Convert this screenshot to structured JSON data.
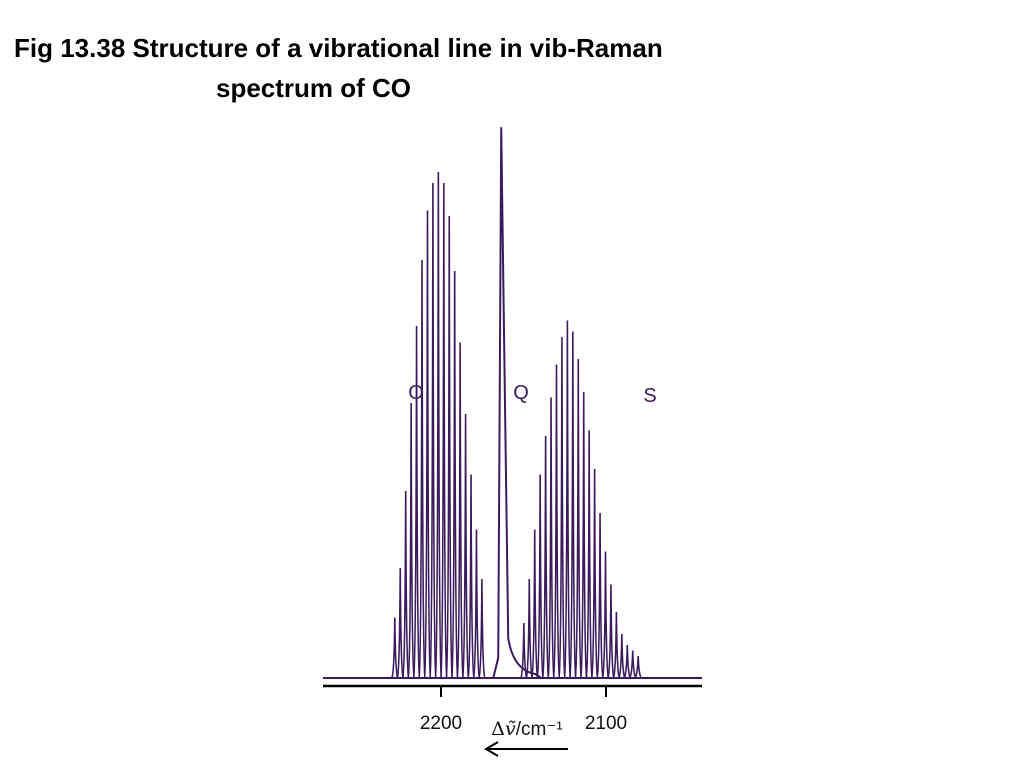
{
  "slide": {
    "title_line1": "Fig 13.38  Structure of a vibrational line in vib-Raman",
    "title_line2": "spectrum of CO"
  },
  "colors": {
    "spectrum": "#3b1a5e",
    "axis": "#000000"
  },
  "chart_data": {
    "type": "line",
    "xlabel_prefix": "Δ",
    "xlabel_var": "ṽ",
    "xlabel_unit": "/cm⁻¹",
    "x_direction": "decreasing to the right",
    "xlim": [
      2235,
      2073
    ],
    "xticks": [
      2200,
      2100
    ],
    "tick_labels": [
      "2200",
      "2100"
    ],
    "ylim": [
      0,
      1.0
    ],
    "branches": [
      {
        "name": "O",
        "positions": [
          2228,
          2224.7,
          2221.4,
          2218.1,
          2214.8,
          2211.5,
          2208.2,
          2204.9,
          2201.6,
          2198.3,
          2195,
          2191.7,
          2188.4,
          2185.1,
          2181.8,
          2178.5,
          2175.2
        ],
        "intensities": [
          0.11,
          0.2,
          0.34,
          0.5,
          0.64,
          0.76,
          0.85,
          0.9,
          0.92,
          0.9,
          0.84,
          0.74,
          0.61,
          0.48,
          0.37,
          0.27,
          0.18
        ]
      },
      {
        "name": "Q",
        "positions": [
          2163.5
        ],
        "intensities": [
          1.0
        ]
      },
      {
        "name": "S",
        "positions": [
          2149.8,
          2146.5,
          2143.2,
          2139.9,
          2136.6,
          2133.3,
          2130,
          2126.7,
          2123.4,
          2120.1,
          2116.8,
          2113.5,
          2110.2,
          2106.9,
          2103.6,
          2100.3,
          2097,
          2093.7,
          2090.4,
          2087.1,
          2083.8,
          2080.5
        ],
        "intensities": [
          0.1,
          0.18,
          0.27,
          0.37,
          0.44,
          0.51,
          0.57,
          0.62,
          0.65,
          0.63,
          0.58,
          0.52,
          0.45,
          0.38,
          0.3,
          0.23,
          0.17,
          0.12,
          0.08,
          0.06,
          0.05,
          0.04
        ]
      }
    ],
    "annotations": [
      {
        "text": "O",
        "branch": "O"
      },
      {
        "text": "Q",
        "branch": "Q"
      },
      {
        "text": "S",
        "branch": "S"
      }
    ]
  }
}
